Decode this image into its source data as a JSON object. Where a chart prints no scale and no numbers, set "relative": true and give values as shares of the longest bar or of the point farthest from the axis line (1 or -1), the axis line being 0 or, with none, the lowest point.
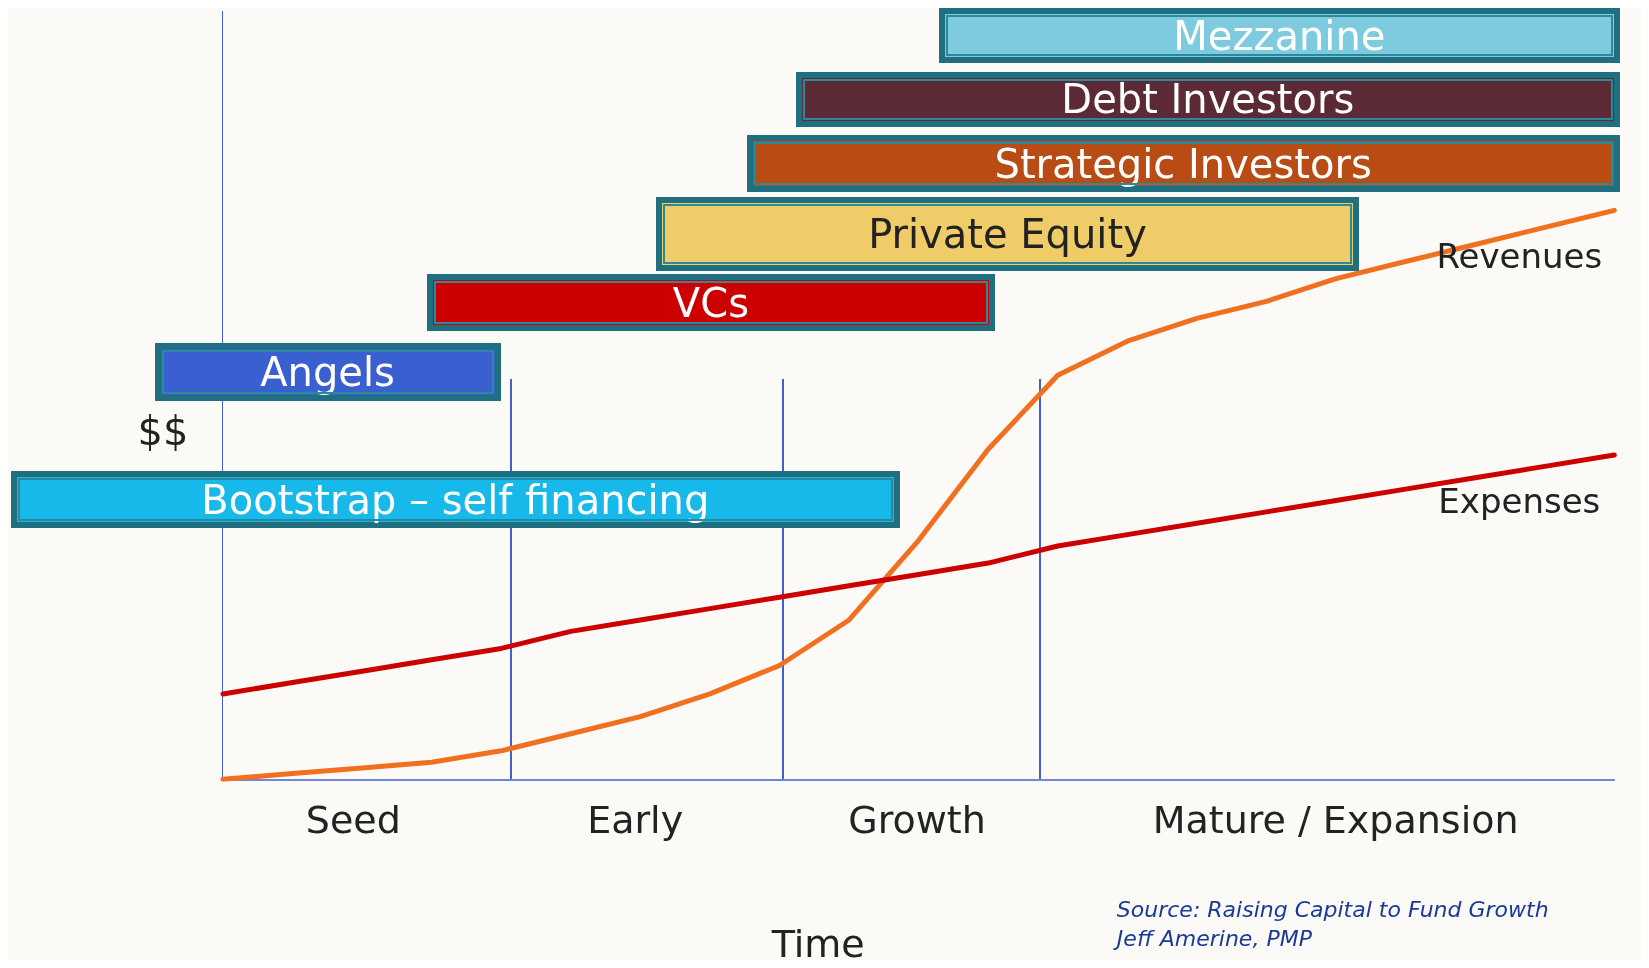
{
  "chart_data": {
    "type": "line",
    "relative": true,
    "xlabel": "Time",
    "ylabel": "$$",
    "categories": [
      null,
      null,
      null,
      null,
      null,
      null,
      null,
      null,
      null,
      null,
      null,
      null,
      null,
      null,
      null,
      null,
      null,
      null,
      null,
      null,
      null
    ],
    "series": [
      {
        "name": "Revenues",
        "color": "#f07020",
        "values": [
          0.0,
          0.01,
          0.02,
          0.03,
          0.05,
          0.08,
          0.11,
          0.15,
          0.2,
          0.28,
          0.42,
          0.58,
          0.71,
          0.77,
          0.81,
          0.84,
          0.88,
          0.91,
          0.94,
          0.97,
          1.0
        ]
      },
      {
        "name": "Expenses",
        "color": "#cc0000",
        "values": [
          0.15,
          0.17,
          0.19,
          0.21,
          0.23,
          0.26,
          0.28,
          0.3,
          0.32,
          0.34,
          0.36,
          0.38,
          0.41,
          0.43,
          0.45,
          0.47,
          0.49,
          0.51,
          0.53,
          0.55,
          0.57
        ]
      }
    ],
    "annotations": [
      "Seed",
      "Early",
      "Growth",
      "Mature / Expansion",
      "Mezzanine",
      "Debt Investors",
      "Strategic Investors",
      "Private Equity",
      "VCs",
      "Angels",
      "Bootstrap – self financing",
      "Source: Raising Capital to Fund Growth",
      "Jeff Amerine, PMP"
    ],
    "grid": false,
    "legend": false,
    "marker": "none",
    "line_style": "solid"
  }
}
